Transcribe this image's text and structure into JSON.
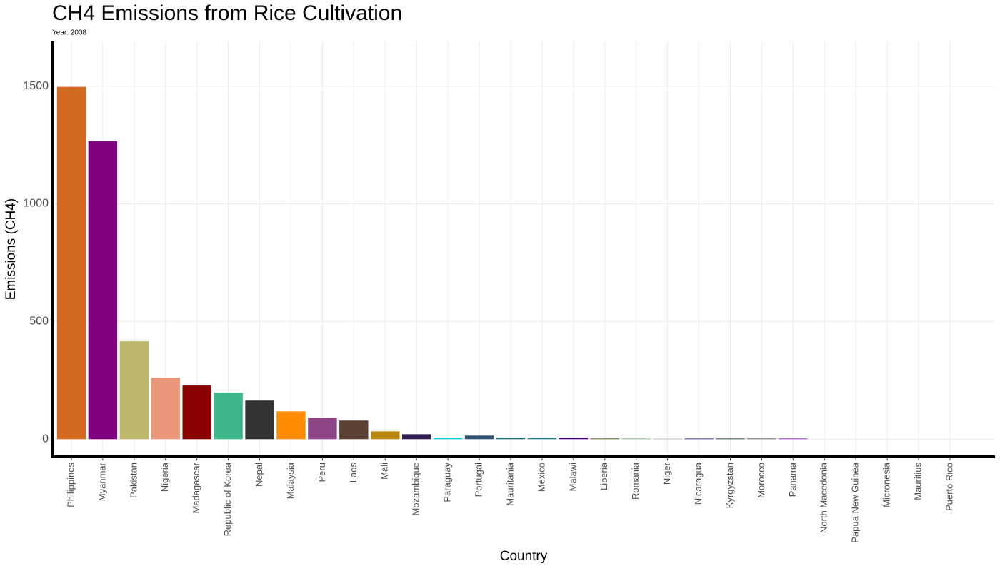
{
  "chart_data": {
    "type": "bar",
    "title": "CH4 Emissions from Rice Cultivation",
    "subtitle": "Year: 2008",
    "x_label": "Country",
    "y_label": "Emissions (CH4)",
    "categories": [
      "Philippines",
      "Myanmar",
      "Pakistan",
      "Nigeria",
      "Madagascar",
      "Republic of Korea",
      "Nepal",
      "Malaysia",
      "Peru",
      "Laos",
      "Mali",
      "Mozambique",
      "Paraguay",
      "Portugal",
      "Mauritania",
      "Mexico",
      "Malawi",
      "Liberia",
      "Romania",
      "Niger",
      "Nicaragua",
      "Kyrgyzstan",
      "Morocco",
      "Panama",
      "North Macedonia",
      "Papua New Guinea",
      "Micronesia",
      "Mauritius",
      "Puerto Rico"
    ],
    "values": [
      1497,
      1266,
      416,
      261,
      228,
      197,
      164,
      118,
      91,
      79,
      33,
      21,
      6,
      15,
      7,
      6,
      6,
      3,
      3,
      2,
      3,
      3,
      3,
      3,
      0,
      0,
      0,
      0,
      0
    ],
    "colors": [
      "#d2691e",
      "#800080",
      "#bdb76b",
      "#e9967a",
      "#8b0000",
      "#3cb68a",
      "#333333",
      "#ff8c00",
      "#8e4585",
      "#5c4033",
      "#b8860b",
      "#2f1f4f",
      "#00ced1",
      "#2f4f6f",
      "#1f6f6f",
      "#20808a",
      "#4b0082",
      "#556b2f",
      "#8fbc8f",
      "#a9a9a9",
      "#483d8b",
      "#2f4f4f",
      "#696969",
      "#9932cc",
      "#888888",
      "#888888",
      "#888888",
      "#888888",
      "#888888"
    ],
    "ylim": [
      -75,
      1690
    ],
    "yticks": [
      0,
      500,
      1000,
      1500
    ],
    "grid": true
  }
}
